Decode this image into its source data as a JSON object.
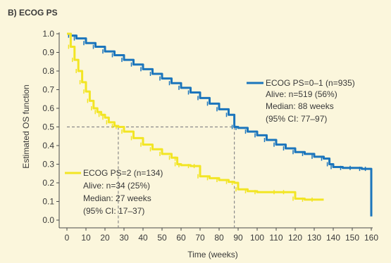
{
  "chart_data": {
    "type": "line",
    "title": "B) ECOG PS",
    "xlabel": "Time (weeks)",
    "ylabel": "Estimated OS function",
    "xlim": [
      0,
      160
    ],
    "ylim": [
      0,
      1.0
    ],
    "x_ticks": [
      0,
      10,
      20,
      30,
      40,
      50,
      60,
      70,
      80,
      90,
      100,
      110,
      120,
      130,
      140,
      150,
      160
    ],
    "y_ticks": [
      "0.0",
      "0.1",
      "0.2",
      "0.3",
      "0.4",
      "0.5",
      "0.6",
      "0.7",
      "0.8",
      "0.9",
      "1.0"
    ],
    "grid": false,
    "series": [
      {
        "key": "ps01",
        "color": "#1b75bc",
        "annotation": [
          "ECOG PS=0–1 (n=935)",
          "Alive: n=519 (56%)",
          "Median: 88 weeks",
          "(95% CI: 77–97)"
        ],
        "median": 88,
        "points": [
          [
            0,
            1.0
          ],
          [
            2,
            0.99
          ],
          [
            5,
            0.975
          ],
          [
            10,
            0.95
          ],
          [
            15,
            0.93
          ],
          [
            20,
            0.905
          ],
          [
            25,
            0.885
          ],
          [
            30,
            0.86
          ],
          [
            35,
            0.835
          ],
          [
            40,
            0.81
          ],
          [
            45,
            0.785
          ],
          [
            50,
            0.76
          ],
          [
            55,
            0.735
          ],
          [
            60,
            0.71
          ],
          [
            65,
            0.685
          ],
          [
            70,
            0.655
          ],
          [
            75,
            0.625
          ],
          [
            80,
            0.595
          ],
          [
            85,
            0.565
          ],
          [
            88,
            0.5
          ],
          [
            90,
            0.495
          ],
          [
            95,
            0.475
          ],
          [
            100,
            0.455
          ],
          [
            105,
            0.43
          ],
          [
            110,
            0.405
          ],
          [
            115,
            0.385
          ],
          [
            120,
            0.365
          ],
          [
            125,
            0.355
          ],
          [
            130,
            0.34
          ],
          [
            135,
            0.33
          ],
          [
            138,
            0.3
          ],
          [
            140,
            0.285
          ],
          [
            145,
            0.28
          ],
          [
            150,
            0.28
          ],
          [
            155,
            0.275
          ],
          [
            158,
            0.275
          ],
          [
            160,
            0.02
          ]
        ]
      },
      {
        "key": "ps2",
        "color": "#f2e524",
        "annotation": [
          "ECOG PS=2 (n=134)",
          "Alive: n=34 (25%)",
          "Median: 27 weeks",
          "(95% CI: 17–37)"
        ],
        "median": 27,
        "points": [
          [
            0,
            1.0
          ],
          [
            2,
            0.93
          ],
          [
            4,
            0.86
          ],
          [
            6,
            0.8
          ],
          [
            8,
            0.74
          ],
          [
            10,
            0.69
          ],
          [
            12,
            0.64
          ],
          [
            14,
            0.6
          ],
          [
            16,
            0.58
          ],
          [
            18,
            0.565
          ],
          [
            20,
            0.55
          ],
          [
            22,
            0.525
          ],
          [
            25,
            0.505
          ],
          [
            27,
            0.5
          ],
          [
            30,
            0.475
          ],
          [
            35,
            0.44
          ],
          [
            40,
            0.405
          ],
          [
            45,
            0.38
          ],
          [
            50,
            0.355
          ],
          [
            55,
            0.335
          ],
          [
            58,
            0.33
          ],
          [
            58,
            0.3
          ],
          [
            60,
            0.295
          ],
          [
            65,
            0.29
          ],
          [
            68,
            0.29
          ],
          [
            70,
            0.235
          ],
          [
            75,
            0.225
          ],
          [
            80,
            0.215
          ],
          [
            85,
            0.205
          ],
          [
            88,
            0.2
          ],
          [
            90,
            0.165
          ],
          [
            95,
            0.155
          ],
          [
            100,
            0.15
          ],
          [
            110,
            0.15
          ],
          [
            115,
            0.15
          ],
          [
            120,
            0.115
          ],
          [
            125,
            0.11
          ],
          [
            130,
            0.11
          ],
          [
            135,
            0.11
          ]
        ]
      }
    ]
  }
}
